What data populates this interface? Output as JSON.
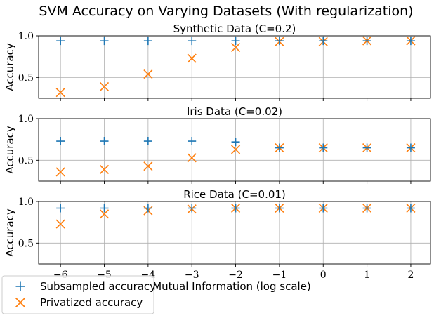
{
  "figure": {
    "title": "SVM Accuracy on Varying Datasets (With regularization)",
    "xlabel": "Mutual Information (log scale)"
  },
  "legend": {
    "placement": "bottom-left",
    "entries": [
      {
        "label": "Subsampled accuracy",
        "marker": "plus",
        "color": "#1f77b4"
      },
      {
        "label": "Privatized accuracy",
        "marker": "x",
        "color": "#ff7f0e"
      }
    ]
  },
  "colors": {
    "subsampled": "#1f77b4",
    "privatized": "#ff7f0e",
    "grid": "#b0b0b0"
  },
  "chart_data": [
    {
      "type": "scatter",
      "title": "Synthetic Data (C=0.2)",
      "ylabel": "Accuracy",
      "x": [
        -6,
        -5,
        -4,
        -3,
        -2,
        -1,
        0,
        1,
        2
      ],
      "xlim": [
        -6.5,
        2.45
      ],
      "ylim": [
        0.25,
        1.0
      ],
      "yticks": [
        "0.5",
        "1.0"
      ],
      "grid": true,
      "series": [
        {
          "name": "Subsampled accuracy",
          "values": [
            0.94,
            0.94,
            0.94,
            0.94,
            0.94,
            0.94,
            0.94,
            0.94,
            0.94
          ]
        },
        {
          "name": "Privatized accuracy",
          "values": [
            0.32,
            0.39,
            0.54,
            0.73,
            0.86,
            0.93,
            0.93,
            0.94,
            0.94
          ]
        }
      ]
    },
    {
      "type": "scatter",
      "title": "Iris Data (C=0.02)",
      "ylabel": "Accuracy",
      "x": [
        -6,
        -5,
        -4,
        -3,
        -2,
        -1,
        0,
        1,
        2
      ],
      "xlim": [
        -6.5,
        2.45
      ],
      "ylim": [
        0.25,
        1.0
      ],
      "yticks": [
        "0.5",
        "1.0"
      ],
      "grid": true,
      "series": [
        {
          "name": "Subsampled accuracy",
          "values": [
            0.73,
            0.73,
            0.73,
            0.73,
            0.72,
            0.65,
            0.65,
            0.65,
            0.65
          ]
        },
        {
          "name": "Privatized accuracy",
          "values": [
            0.36,
            0.39,
            0.43,
            0.53,
            0.63,
            0.65,
            0.65,
            0.65,
            0.65
          ]
        }
      ]
    },
    {
      "type": "scatter",
      "title": "Rice Data (C=0.01)",
      "ylabel": "Accuracy",
      "x": [
        -6,
        -5,
        -4,
        -3,
        -2,
        -1,
        0,
        1,
        2
      ],
      "xlim": [
        -6.5,
        2.45
      ],
      "ylim": [
        0.25,
        1.0
      ],
      "yticks": [
        "0.5",
        "1.0"
      ],
      "xticks": [
        "−6",
        "−5",
        "−4",
        "−3",
        "−2",
        "−1",
        "0",
        "1",
        "2"
      ],
      "grid": true,
      "series": [
        {
          "name": "Subsampled accuracy",
          "values": [
            0.92,
            0.92,
            0.92,
            0.92,
            0.92,
            0.92,
            0.92,
            0.92,
            0.92
          ]
        },
        {
          "name": "Privatized accuracy",
          "values": [
            0.73,
            0.85,
            0.89,
            0.91,
            0.92,
            0.92,
            0.92,
            0.92,
            0.92
          ]
        }
      ]
    }
  ]
}
